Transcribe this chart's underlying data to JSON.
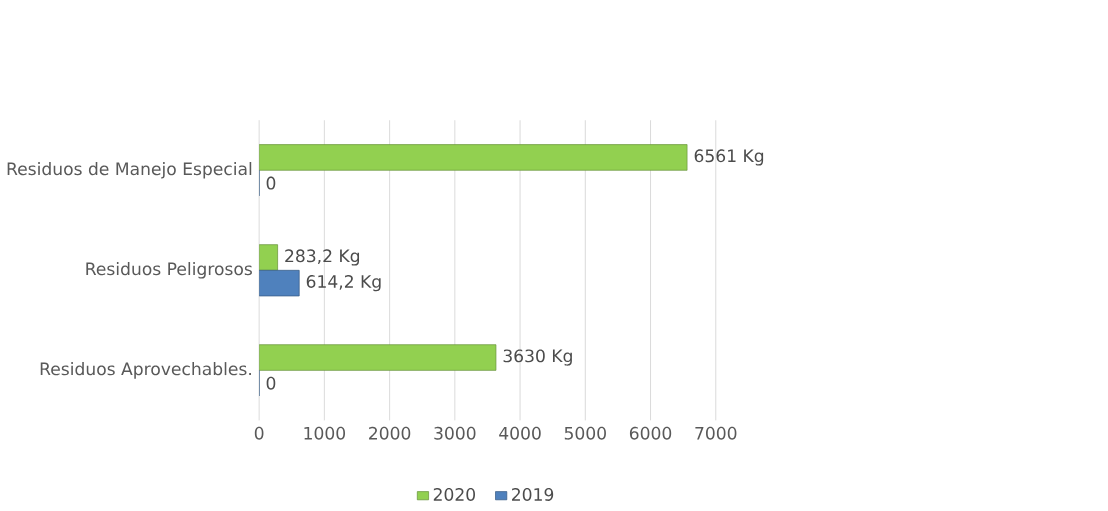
{
  "chart_data": {
    "type": "bar",
    "orientation": "horizontal",
    "categories": [
      "Residuos de Manejo Especial",
      "Residuos Peligrosos",
      "Residuos Aprovechables."
    ],
    "series": [
      {
        "name": "2020",
        "color": "#92d050",
        "values": [
          6561,
          283.2,
          3630
        ],
        "value_labels": [
          "6561 Kg",
          "283,2 Kg",
          "3630 Kg"
        ]
      },
      {
        "name": "2019",
        "color": "#4f81bd",
        "values": [
          0,
          614.2,
          0
        ],
        "value_labels": [
          "0",
          "614,2 Kg",
          "0"
        ]
      }
    ],
    "xlim": [
      0,
      7000
    ],
    "xticks": [
      0,
      1000,
      2000,
      3000,
      4000,
      5000,
      6000,
      7000
    ],
    "grid": "x",
    "legend": "bottom"
  }
}
